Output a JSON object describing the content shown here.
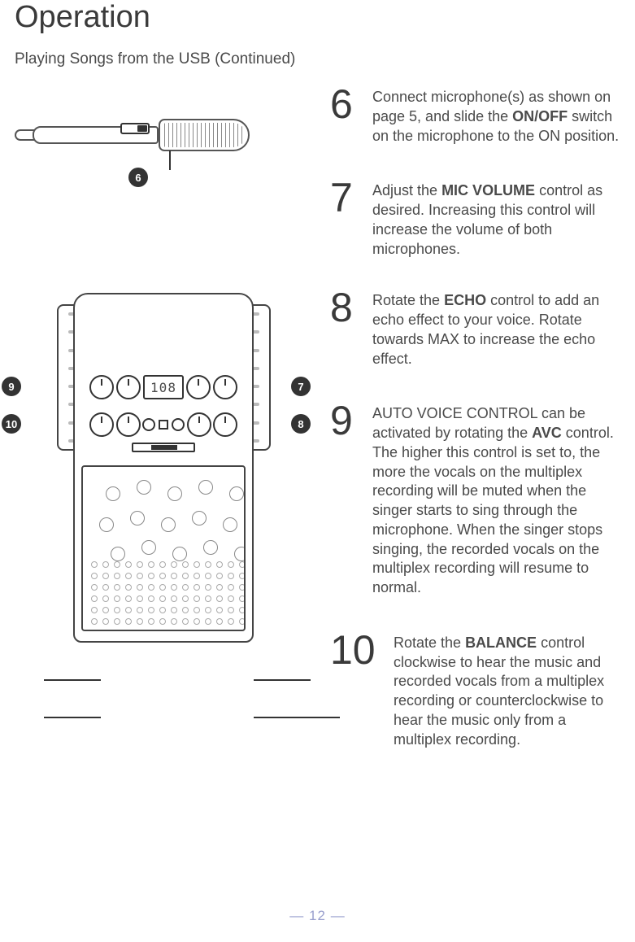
{
  "title": "Operation",
  "subtitle": "Playing Songs from the USB (Continued)",
  "display_value": "108",
  "callouts": {
    "mic": "6",
    "c7": "7",
    "c8": "8",
    "c9": "9",
    "c10": "10"
  },
  "steps": [
    {
      "num": "6",
      "segments": [
        {
          "t": "Connect microphone(s) as shown on page 5, and slide the "
        },
        {
          "t": "ON/OFF",
          "b": true
        },
        {
          "t": " switch on the microphone to the ON position."
        }
      ]
    },
    {
      "num": "7",
      "segments": [
        {
          "t": "Adjust the "
        },
        {
          "t": "MIC VOLUME",
          "b": true
        },
        {
          "t": " control as desired. Increasing this control will increase the volume of both microphones."
        }
      ]
    },
    {
      "num": "8",
      "segments": [
        {
          "t": "Rotate the "
        },
        {
          "t": "ECHO",
          "b": true
        },
        {
          "t": " control to add an echo effect to your voice. Rotate towards MAX to increase the echo effect."
        }
      ]
    },
    {
      "num": "9",
      "segments": [
        {
          "t": "AUTO VOICE CONTROL can be activated by rotating the "
        },
        {
          "t": "AVC",
          "b": true
        },
        {
          "t": " control. The higher this control is set to, the more the vocals on the multiplex recording will be muted when the singer starts to sing through the microphone. When the singer stops singing, the recorded vocals on the multiplex recording will resume to normal."
        }
      ]
    },
    {
      "num": "10",
      "segments": [
        {
          "t": "Rotate the "
        },
        {
          "t": "BALANCE",
          "b": true
        },
        {
          "t": " control clockwise to hear the music and recorded vocals  from a multiplex recording or counterclockwise to hear the music only from a multiplex recording."
        }
      ]
    }
  ],
  "footer": {
    "left_dash": "—",
    "page": "12",
    "right_dash": "—"
  },
  "colors": {
    "text": "#4a4a4a",
    "title": "#3a3a3a",
    "badge_bg": "#333333",
    "badge_fg": "#ffffff",
    "footer": "#9aa0ce",
    "line": "#333333"
  },
  "fonts": {
    "title_size": 38,
    "subtitle_size": 19,
    "body_size": 18,
    "step_num_size": 50
  }
}
